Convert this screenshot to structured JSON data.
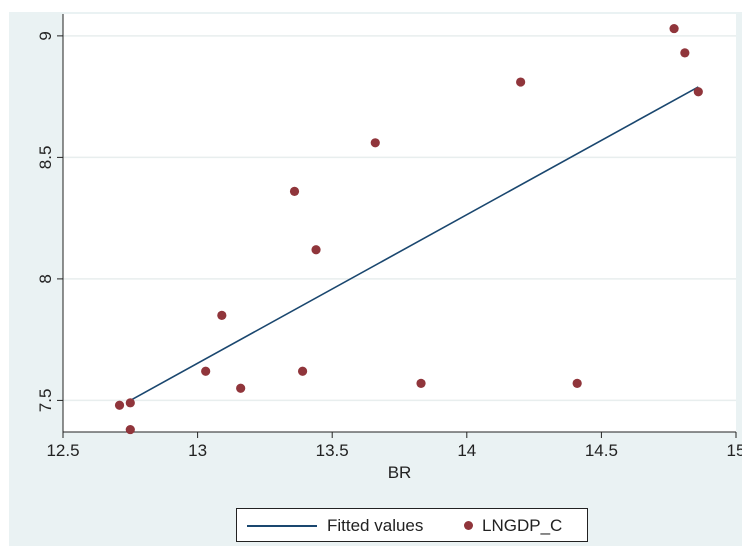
{
  "chart_data": {
    "type": "scatter",
    "xlabel": "BR",
    "ylabel": "",
    "xlim": [
      12.5,
      15.0
    ],
    "ylim": [
      7.37,
      9.09
    ],
    "x_ticks": [
      "12.5",
      "13",
      "13.5",
      "14",
      "14.5",
      "15"
    ],
    "y_ticks": [
      "7.5",
      "8",
      "8.5",
      "9"
    ],
    "grid": true,
    "legend_position": "bottom",
    "series": [
      {
        "name": "Fitted values",
        "type": "line",
        "color": "#1a476f",
        "points": [
          [
            12.75,
            7.5
          ],
          [
            14.86,
            8.79
          ]
        ]
      },
      {
        "name": "LNGDP_C",
        "type": "scatter",
        "color": "#90353b",
        "points": [
          [
            12.71,
            7.48
          ],
          [
            12.75,
            7.49
          ],
          [
            12.75,
            7.38
          ],
          [
            13.03,
            7.62
          ],
          [
            13.09,
            7.85
          ],
          [
            13.16,
            7.55
          ],
          [
            13.36,
            8.36
          ],
          [
            13.39,
            7.62
          ],
          [
            13.44,
            8.12
          ],
          [
            13.66,
            8.56
          ],
          [
            13.83,
            7.57
          ],
          [
            14.2,
            8.81
          ],
          [
            14.41,
            7.57
          ],
          [
            14.77,
            9.03
          ],
          [
            14.81,
            8.93
          ],
          [
            14.86,
            8.77
          ]
        ]
      }
    ]
  },
  "legend": {
    "line_label": "Fitted values",
    "dot_label": "LNGDP_C"
  }
}
